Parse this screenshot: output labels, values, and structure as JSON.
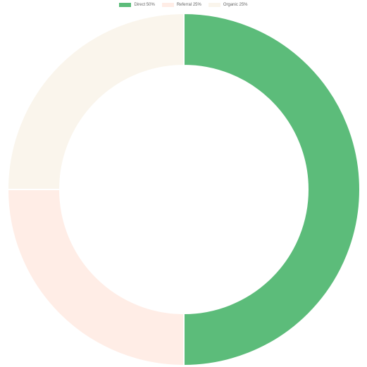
{
  "chart_data": {
    "type": "pie",
    "variant": "doughnut",
    "categories": [
      "Direct 50%",
      "Referral 25%",
      "Organic 25%"
    ],
    "values": [
      50,
      25,
      25
    ],
    "colors": [
      "#5cbc7a",
      "#ffede6",
      "#faf5ec"
    ],
    "title": "",
    "legend_position": "top-center"
  }
}
